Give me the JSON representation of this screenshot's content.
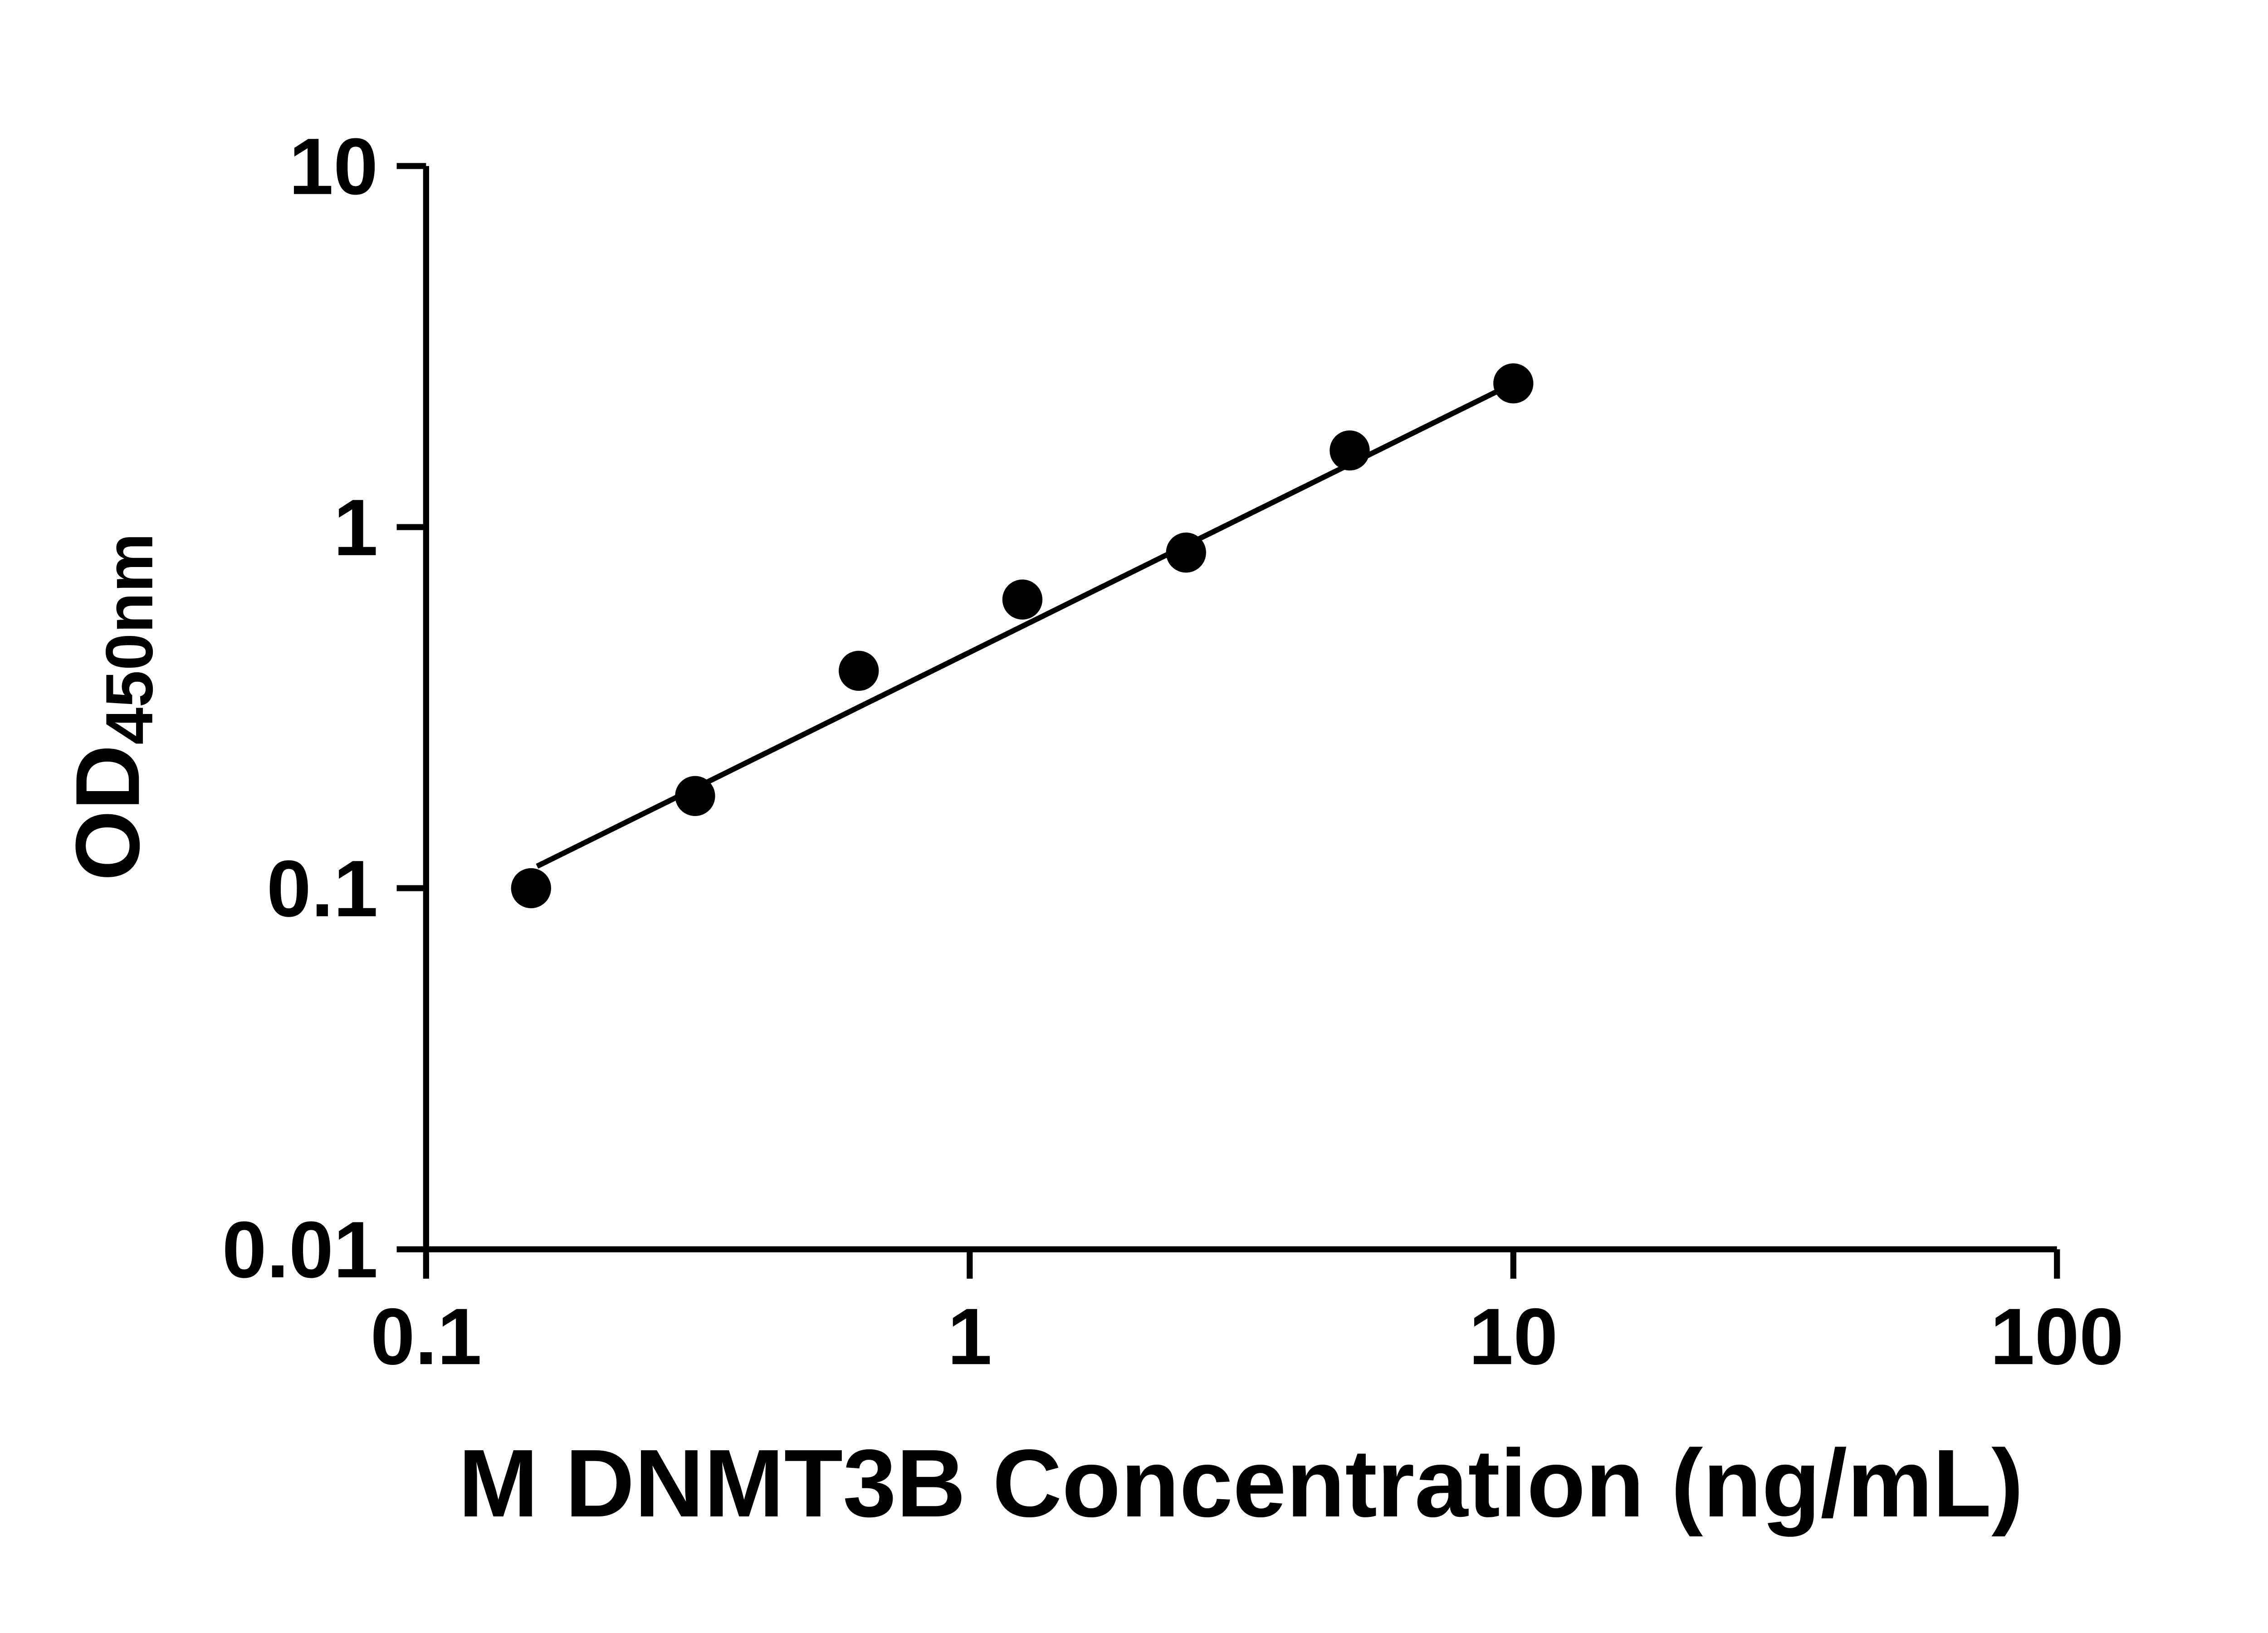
{
  "chart_data": {
    "type": "scatter",
    "title": "",
    "xlabel": "M DNMT3B Concentration (ng/mL)",
    "ylabel_main": "OD",
    "ylabel_sub": "450nm",
    "x_scale": "log",
    "y_scale": "log",
    "xlim": [
      0.1,
      100
    ],
    "ylim": [
      0.01,
      10
    ],
    "grid": false,
    "legend": null,
    "x_ticks": [
      {
        "value": 0.1,
        "label": "0.1"
      },
      {
        "value": 1,
        "label": "1"
      },
      {
        "value": 10,
        "label": "10"
      },
      {
        "value": 100,
        "label": "100"
      }
    ],
    "y_ticks": [
      {
        "value": 0.01,
        "label": "0.01"
      },
      {
        "value": 0.1,
        "label": "0.1"
      },
      {
        "value": 1,
        "label": "1"
      },
      {
        "value": 10,
        "label": "10"
      }
    ],
    "points": [
      {
        "x": 0.156,
        "y": 0.1
      },
      {
        "x": 0.3125,
        "y": 0.18
      },
      {
        "x": 0.625,
        "y": 0.4
      },
      {
        "x": 1.25,
        "y": 0.63
      },
      {
        "x": 2.5,
        "y": 0.85
      },
      {
        "x": 5,
        "y": 1.63
      },
      {
        "x": 10,
        "y": 2.5
      }
    ],
    "trendline": {
      "x1": 0.16,
      "y1": 0.115,
      "x2": 10,
      "y2": 2.5
    },
    "marker_color": "#000000",
    "line_color": "#000000",
    "axis_color": "#000000"
  }
}
